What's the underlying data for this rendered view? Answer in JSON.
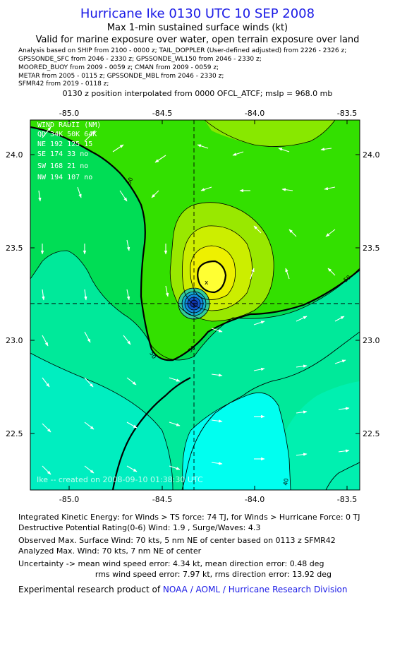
{
  "header": {
    "title": "Hurricane Ike 0130 UTC 10 SEP 2008",
    "subtitle1": "Max 1-min sustained surface winds (kt)",
    "subtitle2": "Valid for marine exposure over water, open terrain exposure over land"
  },
  "analysis_lines": [
    "Analysis based on  SHIP from 2100 - 0000 z;  TAIL_DOPPLER (User-defined adjusted) from 2226 - 2326 z;",
    "GPSSONDE_SFC from 2046 - 2330 z;  GPSSONDE_WL150 from 2046 - 2330 z;",
    "MOORED_BUOY from 2009 - 0059 z;  CMAN from 2009 - 0059 z;",
    "METAR from 2005 - 0115 z;  GPSSONDE_MBL from 2046 - 2330 z;",
    "SFMR42 from 2019 - 0118 z;"
  ],
  "position_note": "0130 z position interpolated from 0000 OFCL_ATCF; mslp = 968.0 mb",
  "map": {
    "lon_ticks": [
      "-85.0",
      "-84.5",
      "-84.0",
      "-83.5"
    ],
    "lat_ticks": [
      "24.0",
      "23.5",
      "23.0",
      "22.5"
    ],
    "center": {
      "lon": -84.2,
      "lat": 23.2
    },
    "contour_labels": [
      "50",
      "50",
      "50",
      "50",
      "40"
    ],
    "watermark": "Ike -- created on 2008-09-10 01:38:30 UTC",
    "wind_radii": {
      "title": "WIND RADII (NM)",
      "header": "QD   34K  50K  64K",
      "rows": [
        "NE   192  125   15",
        "SE   174   33   no",
        "SW   168   21   no",
        "NW   194  107   no"
      ]
    }
  },
  "footer": {
    "ike_line": "Integrated Kinetic Energy:  for Winds > TS force: 74 TJ,  for Winds > Hurricane Force: 0 TJ",
    "dpr_line": "Destructive Potential Rating(0-6)   Wind: 1.9 , Surge/Waves: 4.3",
    "observed_line": "Observed Max. Surface Wind: 70 kts, 5 nm NE of center based on 0113 z SFMR42",
    "analyzed_line": "Analyzed Max. Wind: 70 kts, 7 nm NE of center",
    "uncertainty_line1": "Uncertainty -> mean wind speed error: 4.34 kt,   mean direction error: 0.48 deg",
    "uncertainty_line2": "rms wind speed error: 7.97 kt,   rms direction error: 13.92 deg",
    "credit_prefix": "Experimental research product of ",
    "credit_link": "NOAA / AOML / Hurricane Research Division"
  }
}
